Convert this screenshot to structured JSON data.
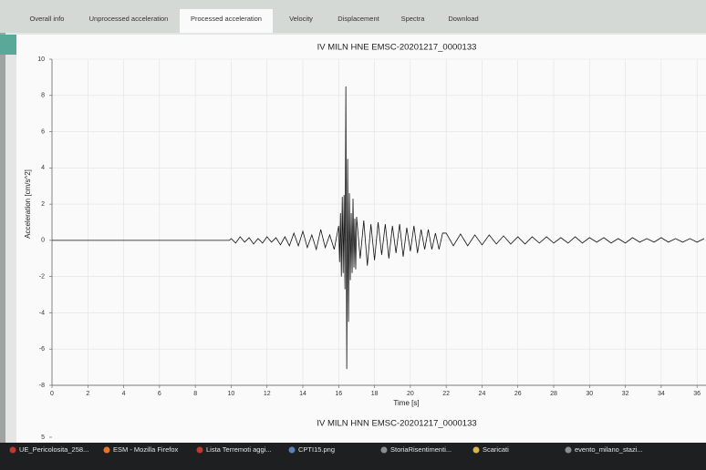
{
  "tabs": [
    "Overall info",
    "Unprocessed acceleration",
    "Processed acceleration",
    "Velocity",
    "Displacement",
    "Spectra",
    "Download"
  ],
  "active_tab": 2,
  "chart_data": [
    {
      "type": "line",
      "title": "IV MILN HNE EMSC-20201217_0000133",
      "x_label": "Time [s]",
      "y_label": "Acceleration [cm/s^2]",
      "color": "#111111",
      "grid": true,
      "xlim": [
        0,
        36.5
      ],
      "ylim": [
        -8,
        10
      ],
      "xticks": [
        0,
        2,
        4,
        6,
        8,
        10,
        12,
        14,
        16,
        18,
        20,
        22,
        24,
        26,
        28,
        30,
        32,
        34,
        36
      ],
      "yticks": [
        -8,
        -6,
        -4,
        -2,
        0,
        2,
        4,
        6,
        8,
        10
      ],
      "x": [
        0,
        9.9,
        10,
        10.25,
        10.5,
        10.75,
        11,
        11.25,
        11.5,
        11.75,
        12,
        12.25,
        12.5,
        12.75,
        13,
        13.25,
        13.5,
        13.75,
        14,
        14.25,
        14.5,
        14.75,
        15,
        15.25,
        15.5,
        15.75,
        16,
        16.05,
        16.1,
        16.15,
        16.2,
        16.25,
        16.3,
        16.35,
        16.4,
        16.45,
        16.5,
        16.55,
        16.6,
        16.65,
        16.7,
        16.75,
        16.8,
        16.85,
        16.9,
        16.95,
        17,
        17.2,
        17.4,
        17.6,
        17.8,
        18,
        18.2,
        18.4,
        18.6,
        18.8,
        19,
        19.2,
        19.4,
        19.6,
        19.8,
        20,
        20.2,
        20.4,
        20.6,
        20.8,
        21,
        21.2,
        21.4,
        21.6,
        21.8,
        22,
        22.4,
        22.8,
        23.2,
        23.6,
        24,
        24.4,
        24.8,
        25.2,
        25.6,
        26,
        26.4,
        26.8,
        27.2,
        27.6,
        28,
        28.4,
        28.8,
        29.2,
        29.6,
        30,
        30.4,
        30.8,
        31.2,
        31.6,
        32,
        32.4,
        32.8,
        33.2,
        33.6,
        34,
        34.4,
        34.8,
        35.2,
        35.6,
        36,
        36.4
      ],
      "values": [
        0,
        0,
        0.1,
        -0.15,
        0.2,
        -0.1,
        0.15,
        -0.2,
        0.1,
        -0.15,
        0.2,
        -0.1,
        0.15,
        -0.25,
        0.2,
        -0.3,
        0.4,
        -0.3,
        0.5,
        -0.4,
        0.3,
        -0.5,
        0.6,
        -0.4,
        0.3,
        -0.5,
        0.8,
        -1.2,
        1.5,
        -2.0,
        2.4,
        -1.8,
        2.5,
        -2.7,
        8.5,
        -7.1,
        4.5,
        -4.5,
        2.6,
        -2.2,
        1.5,
        -1.8,
        2.3,
        -1.5,
        1.2,
        -1.6,
        1.3,
        -1.0,
        1.1,
        -1.4,
        0.9,
        -1.1,
        1.0,
        -0.8,
        0.9,
        -1.0,
        0.8,
        -0.7,
        0.9,
        -0.9,
        0.7,
        -0.6,
        0.8,
        -0.7,
        0.6,
        -0.5,
        0.6,
        -0.5,
        0.4,
        -0.5,
        0.4,
        0.4,
        -0.3,
        0.35,
        -0.3,
        0.3,
        -0.25,
        0.3,
        -0.2,
        0.25,
        -0.2,
        0.2,
        -0.2,
        0.2,
        -0.15,
        0.2,
        -0.15,
        0.15,
        -0.15,
        0.2,
        -0.15,
        0.15,
        -0.1,
        0.15,
        -0.15,
        0.1,
        -0.15,
        0.15,
        -0.1,
        0.1,
        -0.1,
        0.15,
        -0.1,
        0.1,
        -0.1,
        0.1,
        -0.1,
        0.1
      ]
    },
    {
      "type": "line",
      "title": "IV MILN HNN EMSC-20201217_0000133",
      "yticks": [
        5
      ]
    }
  ],
  "taskbar": {
    "items": [
      "UE_Pericolosita_258...",
      "ESM - Mozilla Firefox",
      "Lista Terremoti aggi...",
      "CPTI15.png",
      "StoriaRisentimenti...",
      "Scaricati",
      "evento_milano_stazi..."
    ]
  }
}
